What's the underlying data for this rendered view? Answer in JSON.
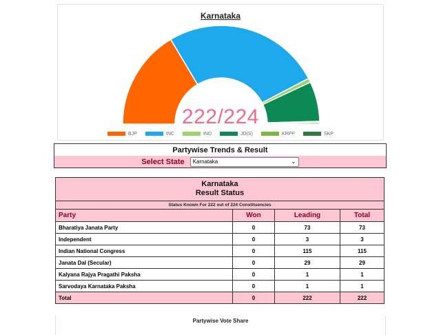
{
  "chart": {
    "title": "Karnataka",
    "center_label": "222/224",
    "colors": {
      "BJP": "#ff6600",
      "INC": "#1ea9ec",
      "IND": "#9dd36a",
      "JD(S)": "#0c8a55",
      "KRPP": "#7ab648",
      "SKP": "#2f7a3c"
    },
    "legend": [
      {
        "label": "BJP",
        "color": "#ff6600"
      },
      {
        "label": "INC",
        "color": "#1ea9ec"
      },
      {
        "label": "IND",
        "color": "#9dd36a"
      },
      {
        "label": "JD(S)",
        "color": "#0c8a55"
      },
      {
        "label": "KRPP",
        "color": "#7ab648"
      },
      {
        "label": "SKP",
        "color": "#2f7a3c"
      }
    ]
  },
  "chart_data": {
    "type": "pie",
    "title": "Karnataka",
    "categories": [
      "BJP",
      "INC",
      "IND",
      "JD(S)",
      "KRPP",
      "SKP"
    ],
    "values": [
      73,
      115,
      3,
      29,
      1,
      1
    ]
  },
  "trends": {
    "title": "Partywise Trends & Result",
    "select_label": "Select State",
    "selected_state": "Karnataka"
  },
  "results": {
    "state": "Karnataka",
    "heading": "Result Status",
    "status_text": "Status Known For 222 out of 224 Constituencies",
    "columns": [
      "Party",
      "Won",
      "Leading",
      "Total"
    ],
    "rows": [
      {
        "party": "Bharatiya Janata Party",
        "won": "0",
        "leading": "73",
        "total": "73"
      },
      {
        "party": "Independent",
        "won": "0",
        "leading": "3",
        "total": "3"
      },
      {
        "party": "Indian National Congress",
        "won": "0",
        "leading": "115",
        "total": "115"
      },
      {
        "party": "Janata Dal (Secular)",
        "won": "0",
        "leading": "29",
        "total": "29"
      },
      {
        "party": "Kalyana Rajya Pragathi Paksha",
        "won": "0",
        "leading": "1",
        "total": "1"
      },
      {
        "party": "Sarvodaya Karnataka Paksha",
        "won": "0",
        "leading": "1",
        "total": "1"
      }
    ],
    "total": {
      "label": "Total",
      "won": "0",
      "leading": "222",
      "total": "222"
    }
  },
  "vote_share": {
    "title": "Partywise Vote Share"
  }
}
